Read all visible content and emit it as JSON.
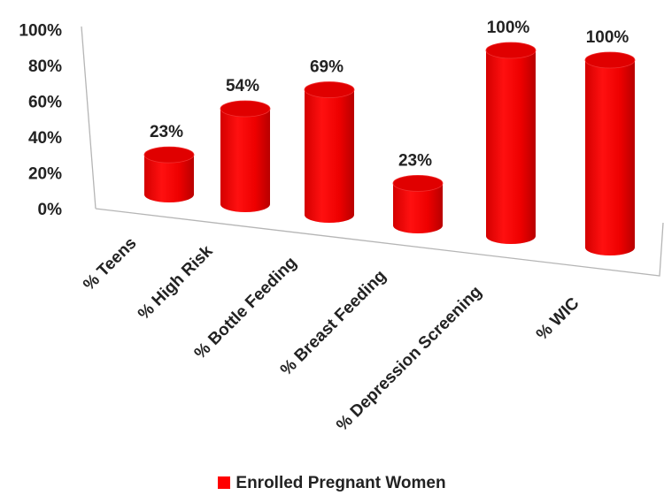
{
  "chart_data": {
    "type": "bar",
    "three_d": true,
    "categories": [
      "% Teens",
      "% High Risk",
      "% Bottle Feeding",
      "% Breast Feeding",
      "% Depression Screening",
      "% WIC"
    ],
    "series": [
      {
        "name": "Enrolled Pregnant Women",
        "values": [
          23,
          54,
          69,
          23,
          100,
          100
        ],
        "color": "#ff0000"
      }
    ],
    "data_labels": [
      "23%",
      "54%",
      "69%",
      "23%",
      "100%",
      "100%"
    ],
    "y_ticks": [
      "0%",
      "20%",
      "40%",
      "60%",
      "80%",
      "100%"
    ],
    "ylim": [
      0,
      100
    ],
    "legend": {
      "position": "bottom",
      "label": "Enrolled Pregnant Women"
    },
    "grid": false
  }
}
